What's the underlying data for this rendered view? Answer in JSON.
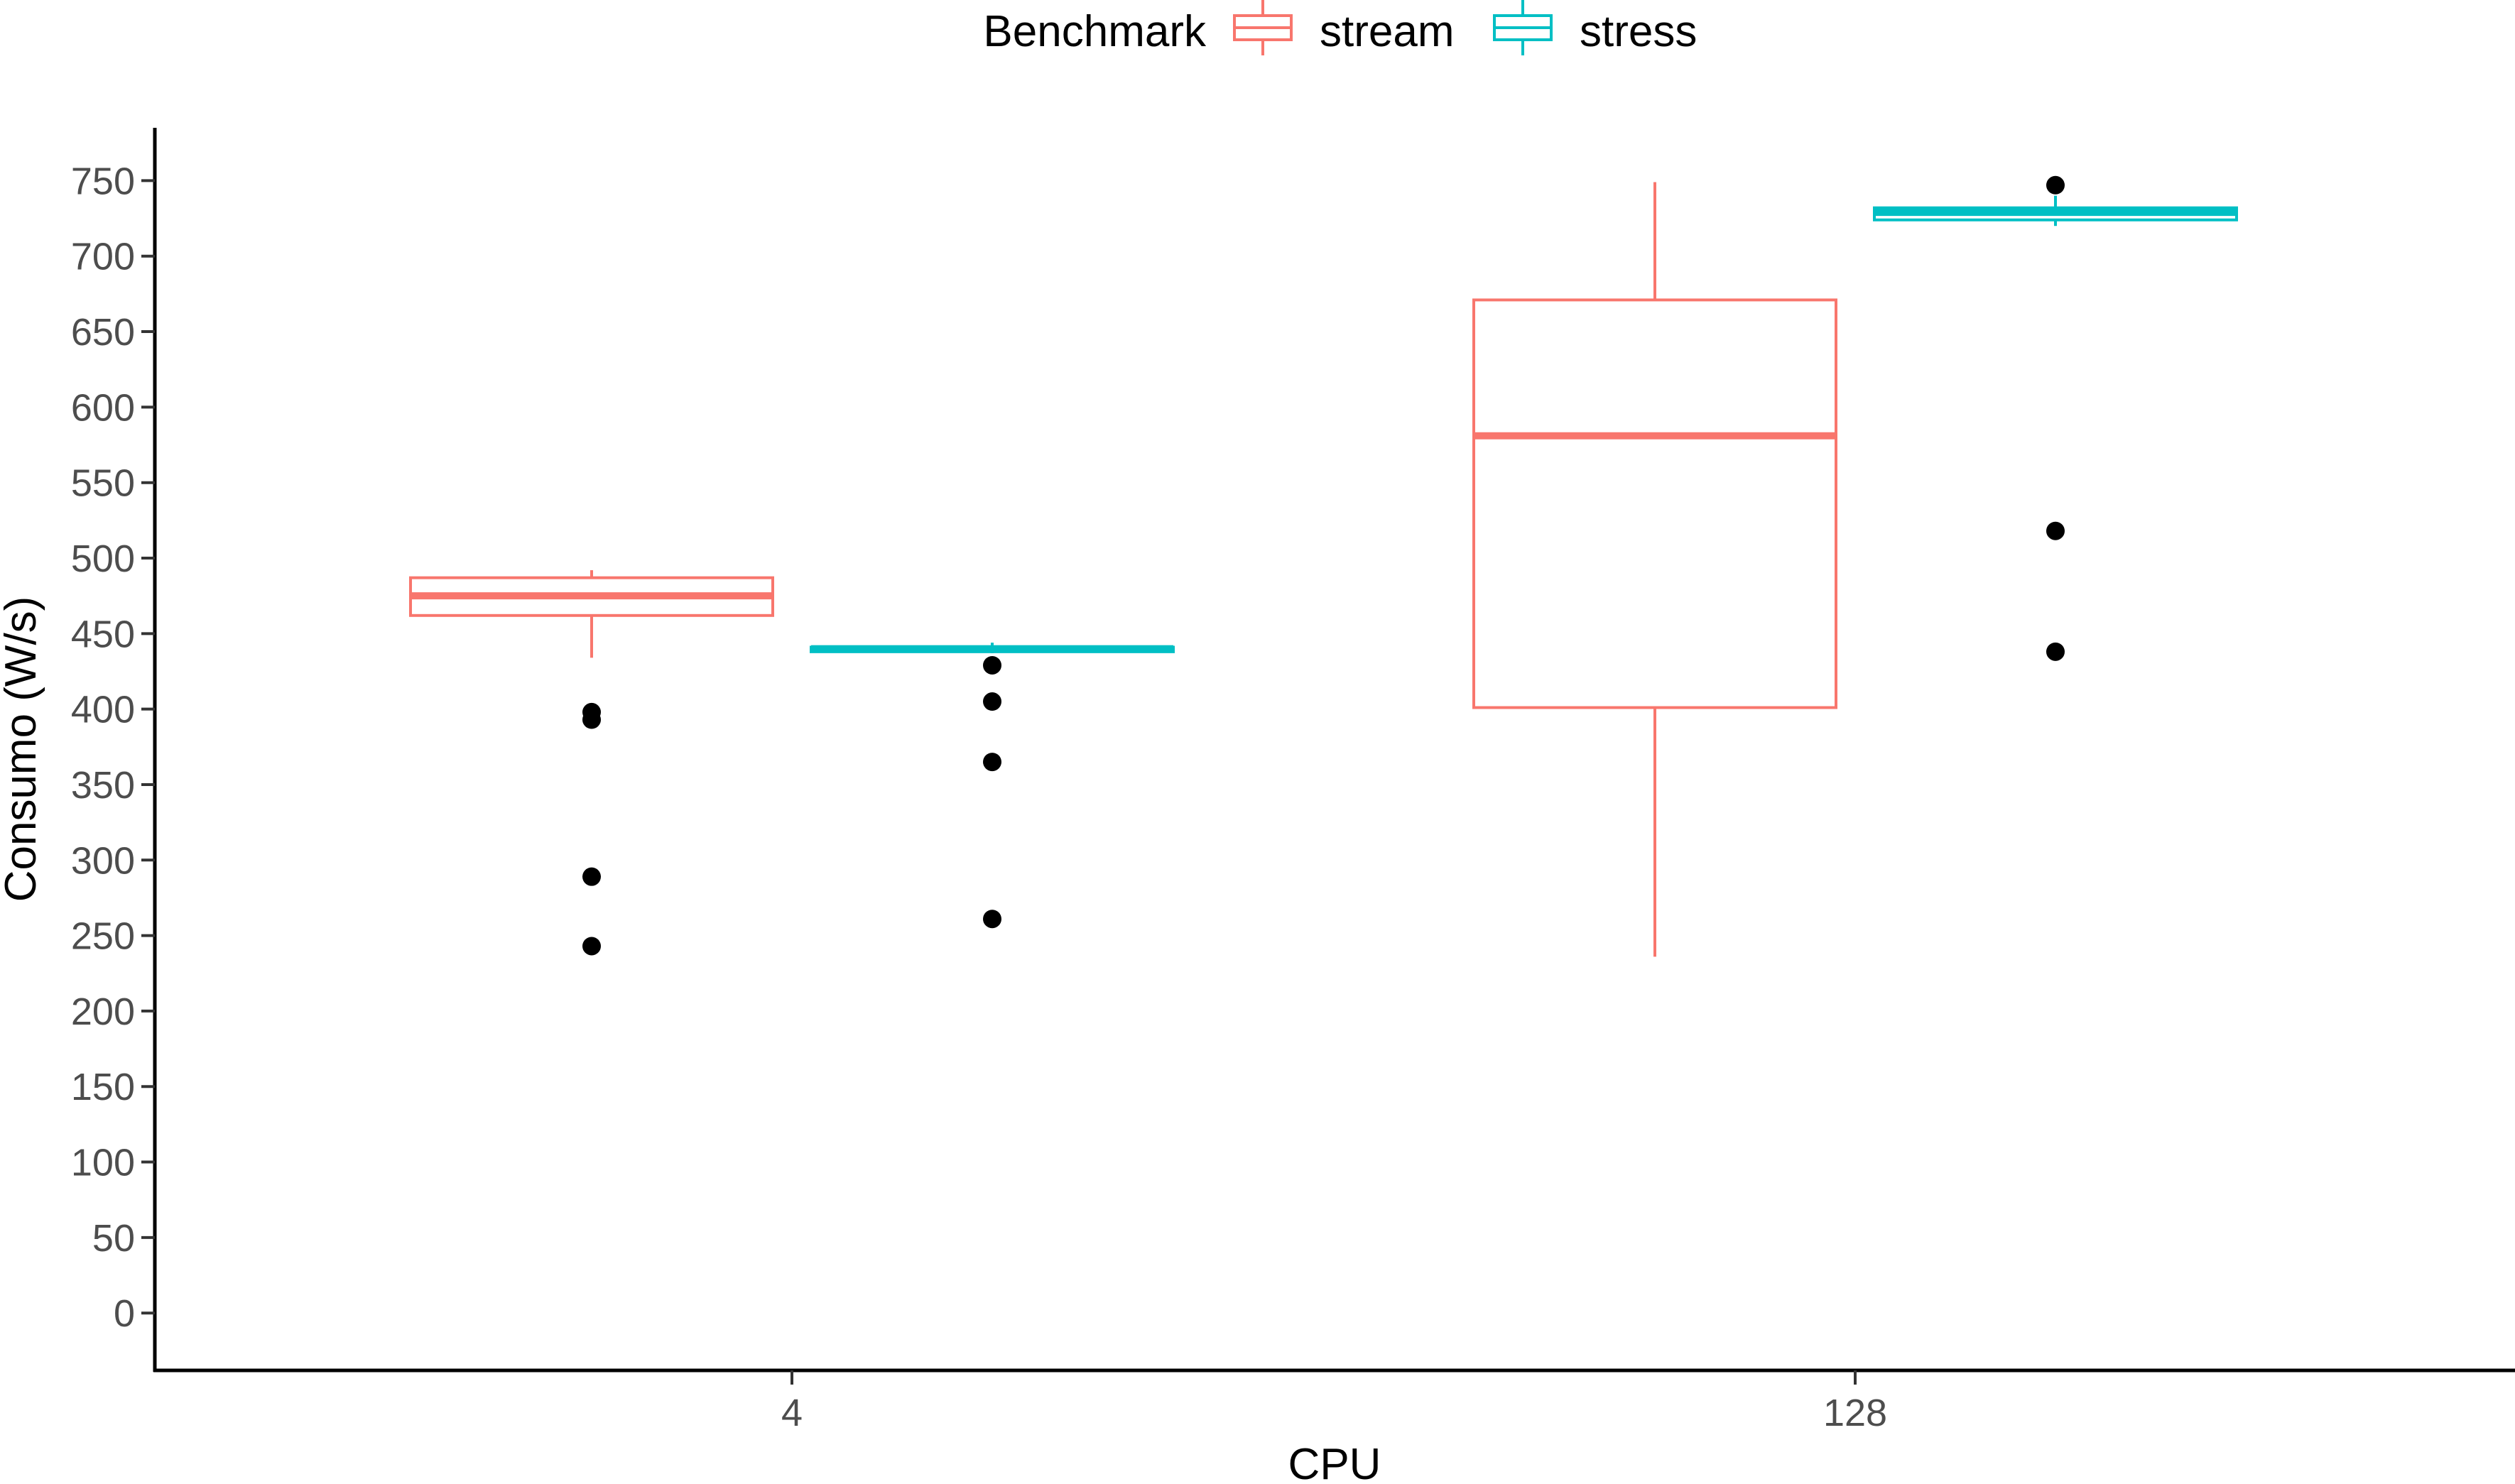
{
  "chart_data": {
    "type": "boxplot",
    "xlabel": "CPU",
    "ylabel": "Consumo (W/s)",
    "categories": [
      "4",
      "128"
    ],
    "ylim": [
      -38,
      785
    ],
    "yticks": [
      0,
      50,
      100,
      150,
      200,
      250,
      300,
      350,
      400,
      450,
      500,
      550,
      600,
      650,
      700,
      750
    ],
    "grid": false,
    "legend": {
      "title": "Benchmark",
      "position": "top"
    },
    "series": [
      {
        "name": "stream",
        "color": "#F8766D",
        "boxes": [
          {
            "category": "4",
            "whisker_low": 434,
            "q1": 462,
            "median": 475,
            "q3": 487,
            "whisker_high": 492,
            "outliers": [
              398,
              393,
              289,
              243
            ]
          },
          {
            "category": "128",
            "whisker_low": 236,
            "q1": 401,
            "median": 581,
            "q3": 671,
            "whisker_high": 749,
            "outliers": []
          }
        ]
      },
      {
        "name": "stress",
        "color": "#00BFC4",
        "boxes": [
          {
            "category": "4",
            "whisker_low": 437,
            "q1": 438,
            "median": 440,
            "q3": 441,
            "whisker_high": 444,
            "outliers": [
              429,
              405,
              365,
              261
            ]
          },
          {
            "category": "128",
            "whisker_low": 720,
            "q1": 724,
            "median": 729,
            "q3": 732,
            "whisker_high": 740,
            "outliers": [
              747,
              518,
              438
            ]
          }
        ]
      }
    ]
  }
}
